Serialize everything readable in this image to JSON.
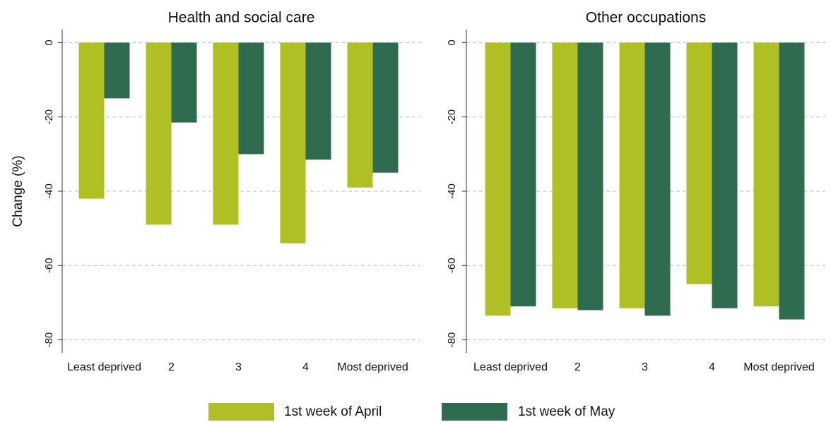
{
  "chart_data": [
    {
      "type": "bar",
      "title": "Health and social care",
      "y_label": "Change (%)",
      "categories": [
        "Least deprived",
        "2",
        "3",
        "4",
        "Most deprived"
      ],
      "series": [
        {
          "name": "1st week of April",
          "color": "#b0bf24",
          "values": [
            -42,
            -49,
            -49,
            -54,
            -39
          ]
        },
        {
          "name": "1st week of May",
          "color": "#2f6b4f",
          "values": [
            -15,
            -21.5,
            -30,
            -31.5,
            -35
          ]
        }
      ],
      "ylim": [
        -83.5,
        3.5
      ],
      "yticks": [
        0,
        -20,
        -40,
        -60,
        -80
      ],
      "grid": true
    },
    {
      "type": "bar",
      "title": "Other occupations",
      "categories": [
        "Least deprived",
        "2",
        "3",
        "4",
        "Most deprived"
      ],
      "series": [
        {
          "name": "1st week of April",
          "color": "#b0bf24",
          "values": [
            -73.5,
            -71.5,
            -71.5,
            -65,
            -71
          ]
        },
        {
          "name": "1st week of May",
          "color": "#2f6b4f",
          "values": [
            -71,
            -72,
            -73.5,
            -71.5,
            -74.5
          ]
        }
      ],
      "ylim": [
        -83.5,
        3.5
      ],
      "yticks": [
        0,
        -20,
        -40,
        -60,
        -80
      ],
      "grid": true
    }
  ]
}
